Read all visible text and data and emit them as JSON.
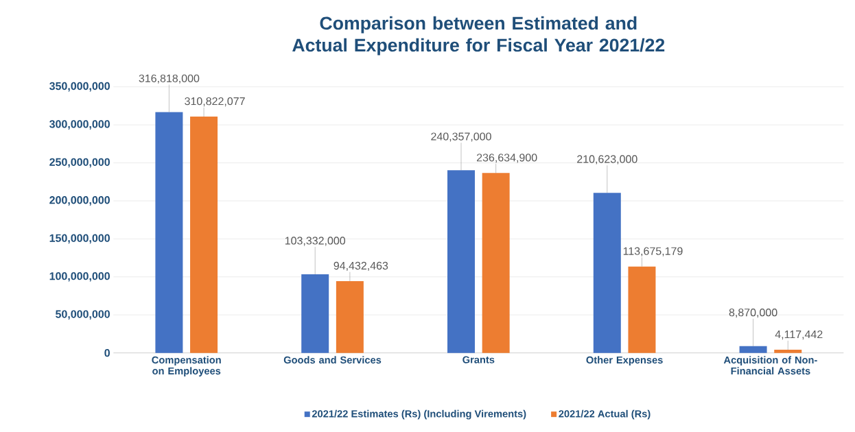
{
  "chart_data": {
    "type": "bar",
    "title": "Comparison between Estimated and Actual Expenditure for Fiscal Year 2021/22",
    "categories": [
      "Compensation on Employees",
      "Goods and Services",
      "Grants",
      "Other Expenses",
      "Acquisition of Non-Financial Assets"
    ],
    "series": [
      {
        "name": "2021/22  Estimates (Rs) (Including Virements)",
        "color": "#4472c4",
        "values": [
          316818000,
          103332000,
          240357000,
          210623000,
          8870000
        ],
        "value_labels": [
          "316,818,000",
          "103,332,000",
          "240,357,000",
          "210,623,000",
          "8,870,000"
        ]
      },
      {
        "name": "2021/22 Actual (Rs)",
        "color": "#ed7d31",
        "values": [
          310822077,
          94432463,
          236634900,
          113675179,
          4117442
        ],
        "value_labels": [
          "310,822,077",
          "94,432,463",
          "236,634,900",
          "113,675,179",
          "4,117,442"
        ]
      }
    ],
    "ylim": [
      0,
      350000000
    ],
    "yticks": [
      {
        "value": 0,
        "label": "0"
      },
      {
        "value": 50000000,
        "label": "50,000,000"
      },
      {
        "value": 100000000,
        "label": "100,000,000"
      },
      {
        "value": 150000000,
        "label": "150,000,000"
      },
      {
        "value": 200000000,
        "label": "200,000,000"
      },
      {
        "value": 250000000,
        "label": "250,000,000"
      },
      {
        "value": 300000000,
        "label": "300,000,000"
      },
      {
        "value": 350000000,
        "label": "350,000,000"
      }
    ],
    "grid": "y",
    "legend": "bottom"
  }
}
